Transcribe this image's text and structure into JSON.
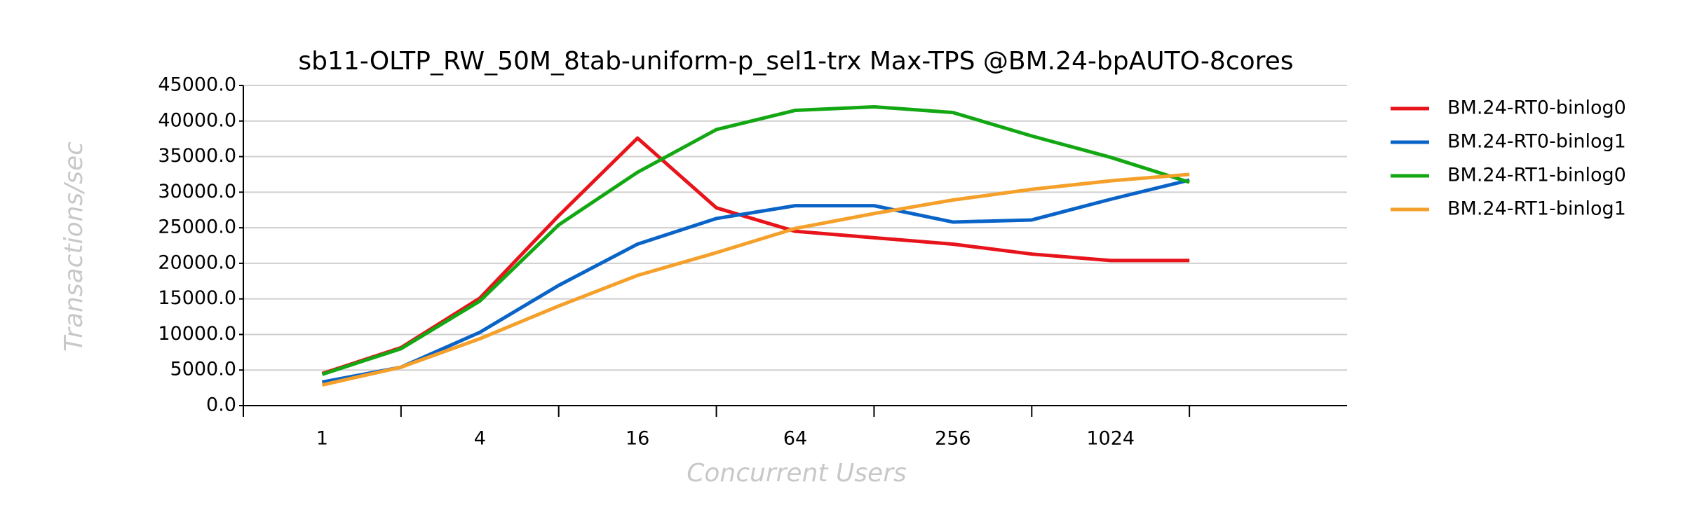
{
  "chart_data": {
    "type": "line",
    "title": "sb11-OLTP_RW_50M_8tab-uniform-p_sel1-trx Max-TPS @BM.24-bpAUTO-8cores",
    "x_label": "Concurrent Users",
    "y_label": "Transactions/sec",
    "categories": [
      "1",
      null,
      "4",
      null,
      "16",
      null,
      "64",
      null,
      "256",
      null,
      "1024",
      null
    ],
    "series": [
      {
        "name": "BM.24-RT0-binlog0",
        "color": "#e8141b",
        "values": [
          4500,
          8150,
          15100,
          26700,
          37600,
          27800,
          24500,
          23600,
          22700,
          21300,
          20400,
          20400
        ]
      },
      {
        "name": "BM.24-RT0-binlog1",
        "color": "#0a64c8",
        "values": [
          3300,
          5400,
          10300,
          16900,
          22700,
          26300,
          28100,
          28100,
          25800,
          26100,
          29000,
          31700
        ]
      },
      {
        "name": "BM.24-RT1-binlog0",
        "color": "#13a813",
        "values": [
          4400,
          8000,
          14700,
          25400,
          32800,
          38800,
          41500,
          42000,
          41200,
          37900,
          34900,
          31400
        ]
      },
      {
        "name": "BM.24-RT1-binlog1",
        "color": "#f5a02a",
        "values": [
          2900,
          5400,
          9400,
          14000,
          18300,
          21500,
          24900,
          27000,
          28900,
          30400,
          31600,
          32500
        ]
      }
    ],
    "ylim": [
      0,
      45000
    ],
    "yticks": [
      {
        "value": 0,
        "label": "0.0"
      },
      {
        "value": 5000,
        "label": "5000.0"
      },
      {
        "value": 10000,
        "label": "10000.0"
      },
      {
        "value": 15000,
        "label": "15000.0"
      },
      {
        "value": 20000,
        "label": "20000.0"
      },
      {
        "value": 25000,
        "label": "25000.0"
      },
      {
        "value": 30000,
        "label": "30000.0"
      },
      {
        "value": 35000,
        "label": "35000.0"
      },
      {
        "value": 40000,
        "label": "40000.0"
      },
      {
        "value": 45000,
        "label": "45000.0"
      }
    ],
    "grid": true,
    "legend": "right"
  }
}
